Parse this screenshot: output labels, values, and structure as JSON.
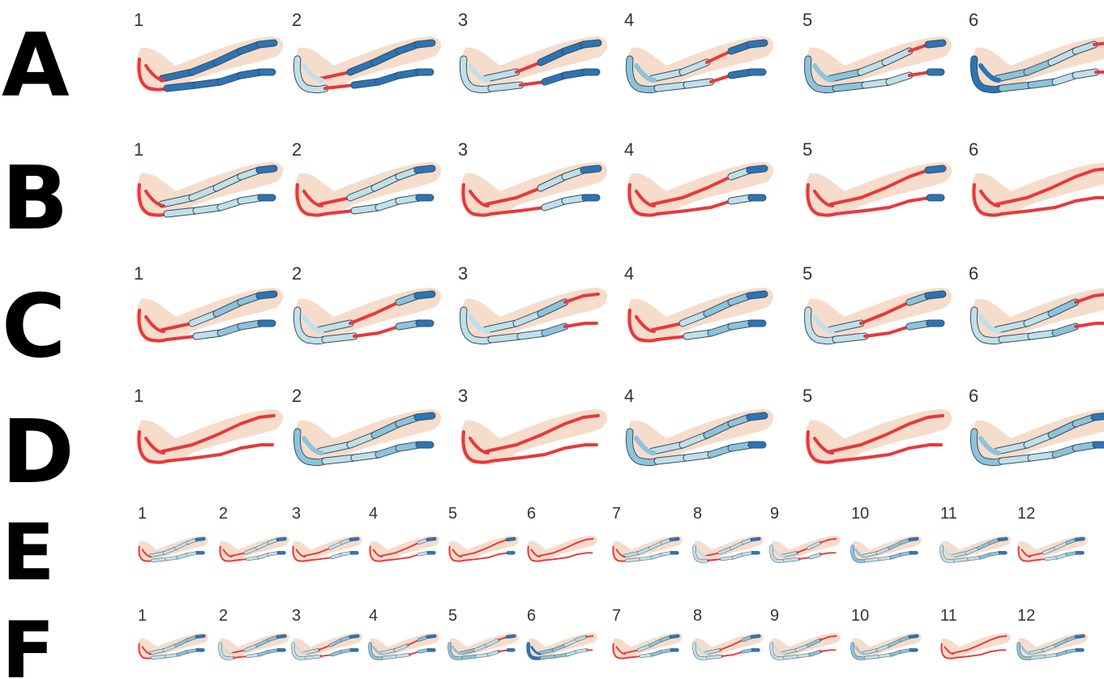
{
  "colors": {
    "skin": "#f6dccb",
    "inflated": "#e8383d",
    "deflated_light": "#bfe0ea",
    "deflated_mid": "#8cc3dd",
    "deflated_dark": "#2a75b8",
    "cuff_outline": "#3c4d59"
  },
  "legend_note": "",
  "rows": [
    {
      "label": "A",
      "steps": [
        {
          "number": "1",
          "states": [
            "on",
            "off",
            "off",
            "off",
            "off",
            "off"
          ]
        },
        {
          "number": "2",
          "states": [
            "light",
            "on",
            "off",
            "off",
            "off",
            "off"
          ]
        },
        {
          "number": "3",
          "states": [
            "light",
            "light",
            "on",
            "off",
            "off",
            "off"
          ]
        },
        {
          "number": "4",
          "states": [
            "mid",
            "light",
            "light",
            "on",
            "off",
            "off"
          ]
        },
        {
          "number": "5",
          "states": [
            "mid",
            "mid",
            "light",
            "light",
            "on",
            "off"
          ]
        },
        {
          "number": "6",
          "states": [
            "off",
            "mid",
            "mid",
            "light",
            "light",
            "on"
          ]
        }
      ]
    },
    {
      "label": "B",
      "steps": [
        {
          "number": "1",
          "states": [
            "on",
            "light",
            "light",
            "light",
            "light",
            "off"
          ]
        },
        {
          "number": "2",
          "states": [
            "on",
            "on",
            "light",
            "light",
            "light",
            "off"
          ]
        },
        {
          "number": "3",
          "states": [
            "on",
            "on",
            "on",
            "light",
            "light",
            "off"
          ]
        },
        {
          "number": "4",
          "states": [
            "on",
            "on",
            "on",
            "on",
            "light",
            "off"
          ]
        },
        {
          "number": "5",
          "states": [
            "on",
            "on",
            "on",
            "on",
            "on",
            "off"
          ]
        },
        {
          "number": "6",
          "states": [
            "on",
            "on",
            "on",
            "on",
            "on",
            "on"
          ]
        }
      ]
    },
    {
      "label": "C",
      "steps": [
        {
          "number": "1",
          "states": [
            "on",
            "on",
            "light",
            "mid",
            "mid",
            "off"
          ]
        },
        {
          "number": "2",
          "states": [
            "light",
            "light",
            "on",
            "on",
            "mid",
            "off"
          ]
        },
        {
          "number": "3",
          "states": [
            "light",
            "light",
            "light",
            "mid",
            "on",
            "on"
          ]
        },
        {
          "number": "4",
          "states": [
            "on",
            "on",
            "light",
            "mid",
            "mid",
            "off"
          ]
        },
        {
          "number": "5",
          "states": [
            "light",
            "light",
            "on",
            "on",
            "mid",
            "off"
          ]
        },
        {
          "number": "6",
          "states": [
            "light",
            "light",
            "light",
            "mid",
            "on",
            "on"
          ]
        }
      ]
    },
    {
      "label": "D",
      "steps": [
        {
          "number": "1",
          "states": [
            "on",
            "on",
            "on",
            "on",
            "on",
            "on"
          ]
        },
        {
          "number": "2",
          "states": [
            "mid",
            "light",
            "light",
            "mid",
            "mid",
            "off"
          ]
        },
        {
          "number": "3",
          "states": [
            "on",
            "on",
            "on",
            "on",
            "on",
            "on"
          ]
        },
        {
          "number": "4",
          "states": [
            "mid",
            "light",
            "light",
            "mid",
            "mid",
            "off"
          ]
        },
        {
          "number": "5",
          "states": [
            "on",
            "on",
            "on",
            "on",
            "on",
            "on"
          ]
        },
        {
          "number": "6",
          "states": [
            "mid",
            "light",
            "light",
            "mid",
            "mid",
            "off"
          ]
        }
      ]
    },
    {
      "label": "E",
      "steps": [
        {
          "number": "1",
          "states": [
            "on",
            "light",
            "light",
            "light",
            "light",
            "off"
          ]
        },
        {
          "number": "2",
          "states": [
            "on",
            "on",
            "light",
            "light",
            "light",
            "off"
          ]
        },
        {
          "number": "3",
          "states": [
            "on",
            "on",
            "on",
            "light",
            "light",
            "off"
          ]
        },
        {
          "number": "4",
          "states": [
            "on",
            "on",
            "on",
            "on",
            "light",
            "off"
          ]
        },
        {
          "number": "5",
          "states": [
            "on",
            "on",
            "on",
            "on",
            "on",
            "off"
          ]
        },
        {
          "number": "6",
          "states": [
            "on",
            "on",
            "on",
            "on",
            "on",
            "on"
          ]
        },
        {
          "number": "7",
          "states": [
            "on",
            "light",
            "light",
            "light",
            "light",
            "off"
          ]
        },
        {
          "number": "8",
          "states": [
            "light",
            "on",
            "light",
            "light",
            "light",
            "off"
          ]
        },
        {
          "number": "9",
          "states": [
            "light",
            "light",
            "on",
            "light",
            "on",
            "on"
          ]
        },
        {
          "number": "10",
          "states": [
            "mid",
            "light",
            "light",
            "mid",
            "mid",
            "off"
          ]
        },
        {
          "number": "11",
          "states": [
            "light",
            "light",
            "light",
            "mid",
            "mid",
            "off"
          ]
        },
        {
          "number": "12",
          "states": [
            "on",
            "on",
            "light",
            "light",
            "mid",
            "off"
          ]
        }
      ]
    },
    {
      "label": "F",
      "steps": [
        {
          "number": "1",
          "states": [
            "on",
            "light",
            "light",
            "mid",
            "mid",
            "off"
          ]
        },
        {
          "number": "2",
          "states": [
            "light",
            "on",
            "light",
            "mid",
            "mid",
            "off"
          ]
        },
        {
          "number": "3",
          "states": [
            "light",
            "light",
            "on",
            "mid",
            "mid",
            "off"
          ]
        },
        {
          "number": "4",
          "states": [
            "mid",
            "light",
            "light",
            "on",
            "mid",
            "off"
          ]
        },
        {
          "number": "5",
          "states": [
            "mid",
            "mid",
            "light",
            "light",
            "on",
            "off"
          ]
        },
        {
          "number": "6",
          "states": [
            "off",
            "mid",
            "mid",
            "light",
            "light",
            "on"
          ]
        },
        {
          "number": "7",
          "states": [
            "on",
            "on",
            "light",
            "mid",
            "mid",
            "off"
          ]
        },
        {
          "number": "8",
          "states": [
            "light",
            "light",
            "on",
            "on",
            "mid",
            "off"
          ]
        },
        {
          "number": "9",
          "states": [
            "light",
            "light",
            "light",
            "mid",
            "on",
            "on"
          ]
        },
        {
          "number": "10",
          "states": [
            "mid",
            "light",
            "light",
            "mid",
            "mid",
            "off"
          ]
        },
        {
          "number": "11",
          "states": [
            "on",
            "on",
            "on",
            "on",
            "on",
            "on"
          ]
        },
        {
          "number": "12",
          "states": [
            "mid",
            "light",
            "light",
            "mid",
            "mid",
            "off"
          ]
        }
      ]
    }
  ]
}
